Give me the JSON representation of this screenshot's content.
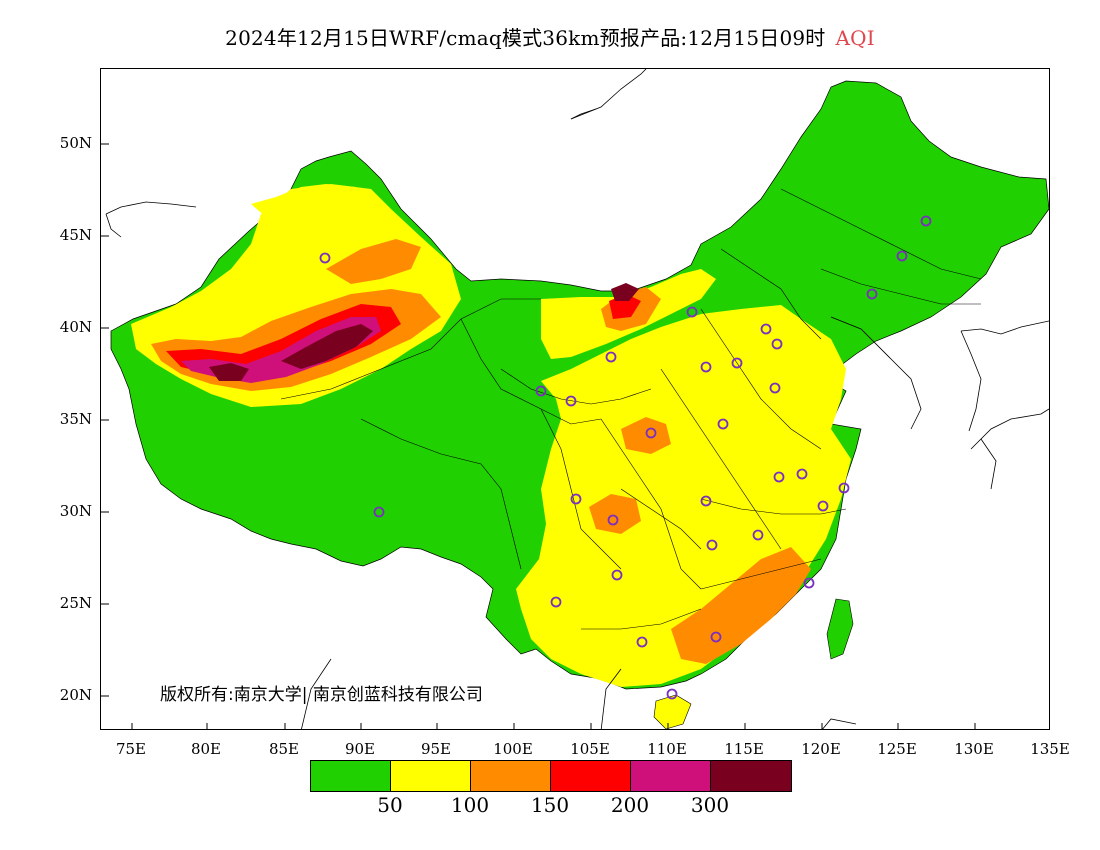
{
  "title": {
    "main": "2024年12月15日WRF/cmaq模式36km预报产品:12月15日09时",
    "variable": "AQI",
    "variable_color": "#e0464e"
  },
  "axes": {
    "y_labels": [
      "50N",
      "45N",
      "40N",
      "35N",
      "30N",
      "25N",
      "20N"
    ],
    "x_labels": [
      "75E",
      "80E",
      "85E",
      "90E",
      "95E",
      "100E",
      "105E",
      "110E",
      "115E",
      "120E",
      "125E",
      "130E",
      "135E"
    ]
  },
  "copyright": "版权所有:南京大学| 南京创蓝科技有限公司",
  "legend": {
    "ticks": [
      "50",
      "100",
      "150",
      "200",
      "300"
    ],
    "colors": [
      "#20d000",
      "#ffff00",
      "#ff8c00",
      "#ff0000",
      "#d0107a",
      "#7a0020"
    ]
  },
  "map": {
    "background": "#ffffff",
    "station_marker_color": "#7b2fbf"
  }
}
